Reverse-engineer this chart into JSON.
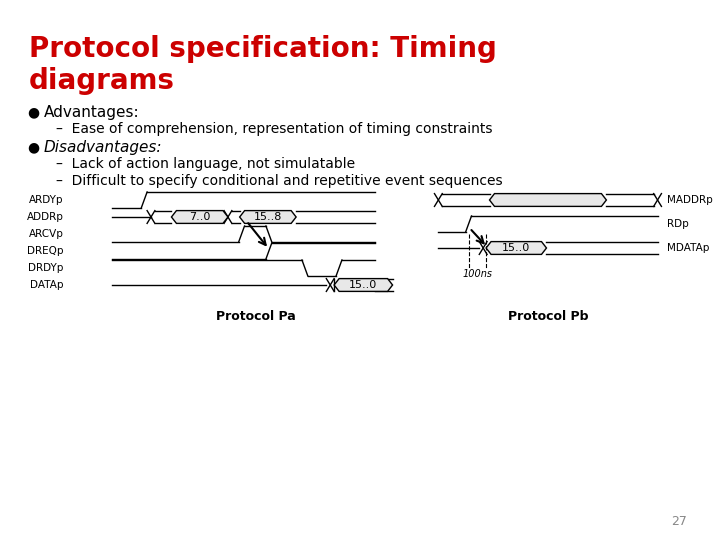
{
  "title": "Protocol specification: Timing\ndiagrams",
  "title_color": "#cc0000",
  "bg_color": "#ffffff",
  "bullet1": "Advantages:",
  "sub1": "Ease of comprehension, representation of timing constraints",
  "bullet2": "Disadvantages:",
  "sub2a": "Lack of action language, not simulatable",
  "sub2b": "Difficult to specify conditional and repetitive event sequences",
  "page_num": "27",
  "proto_pa_label": "Protocol Pa",
  "proto_pb_label": "Protocol Pb",
  "pa_signals": [
    "ARDYp",
    "ADDRp",
    "ARCVp",
    "DREQp",
    "DRDYp",
    "DATAp"
  ],
  "pb_signals": [
    "MADDRp",
    "RDp",
    "MDATAp"
  ],
  "pa_bus_labels": [
    "7..0",
    "15..8",
    "15..0"
  ],
  "pb_bus_label": "15..0",
  "timing_label": "100ns"
}
